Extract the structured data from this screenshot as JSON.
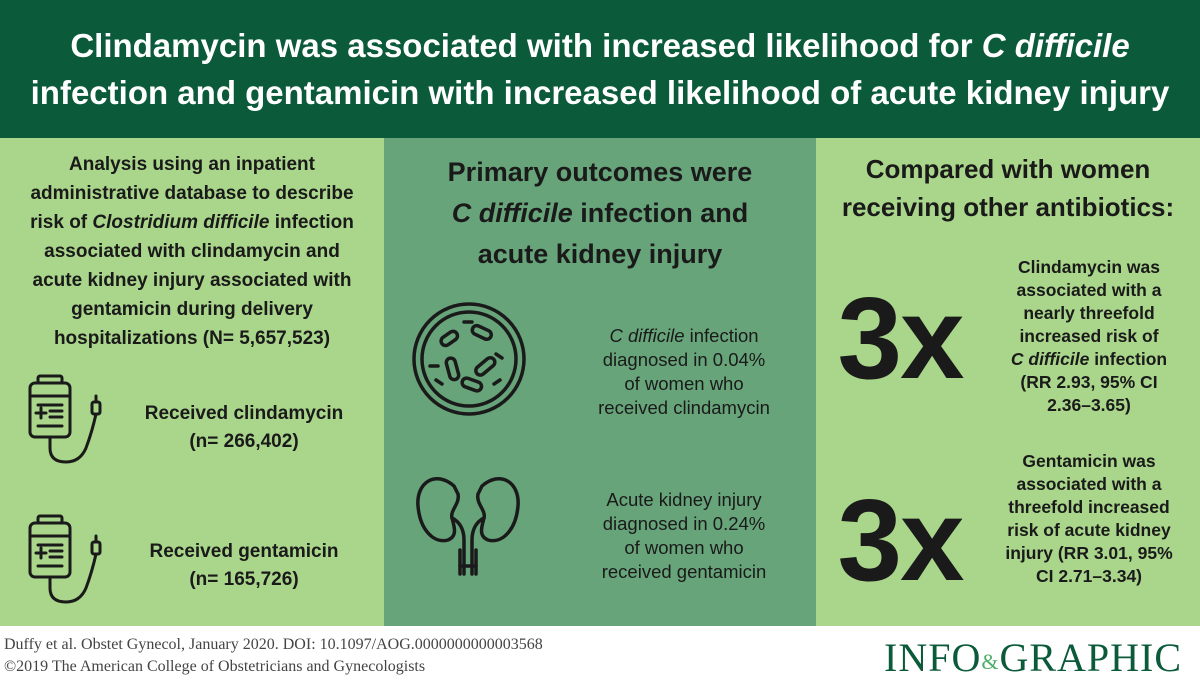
{
  "header": {
    "line1_pre": "Clindamycin was associated with increased likelihood for ",
    "line1_em": "C difficile",
    "line2": "infection and gentamicin with increased likelihood of acute kidney injury"
  },
  "left": {
    "intro_l1": "Analysis using an inpatient",
    "intro_l2": "administrative database to describe",
    "intro_l3_pre": "risk of ",
    "intro_l3_em": "Clostridium difficile",
    "intro_l3_post": " infection",
    "intro_l4": "associated with clindamycin and",
    "intro_l5": "acute kidney injury associated with",
    "intro_l6": "gentamicin during delivery",
    "intro_l7": "hospitalizations (N= 5,657,523)",
    "group1_label": "Received clindamycin",
    "group1_n": "(n= 266,402)",
    "group2_label": "Received gentamicin",
    "group2_n": "(n= 165,726)",
    "iv_icon": "iv-bag-icon"
  },
  "middle": {
    "title_l1": "Primary outcomes were",
    "title_l2_em": "C difficile",
    "title_l2_post": " infection and",
    "title_l3": "acute kidney injury",
    "out1_l1_em": "C difficile",
    "out1_l1_post": " infection",
    "out1_l2": "diagnosed in 0.04%",
    "out1_l3": "of women who",
    "out1_l4": "received clindamycin",
    "out2_l1": "Acute kidney injury",
    "out2_l2": "diagnosed in 0.24%",
    "out2_l3": "of women who",
    "out2_l4": "received gentamicin",
    "icons": [
      "bacteria-petri-dish-icon",
      "kidneys-icon"
    ]
  },
  "right": {
    "title_l1": "Compared with women",
    "title_l2": "receiving other antibiotics:",
    "big1": "3x",
    "big2": "3x",
    "s1_l1": "Clindamycin was",
    "s1_l2": "associated with a",
    "s1_l3": "nearly threefold",
    "s1_l4": "increased risk of",
    "s1_l5_em": "C difficile",
    "s1_l5_post": " infection",
    "s1_l6": "(RR 2.93, 95% CI",
    "s1_l7": "2.36–3.65)",
    "s2_l1": "Gentamicin was",
    "s2_l2": "associated with a",
    "s2_l3": "threefold increased",
    "s2_l4": "risk of acute kidney",
    "s2_l5": "injury (RR 3.01, 95%",
    "s2_l6": "CI 2.71–3.34)"
  },
  "footer": {
    "citation": "Duffy et al. Obstet Gynecol, January 2020. DOI: 10.1097/AOG.0000000000003568",
    "copyright": "©2019 The American College of Obstetricians and Gynecologists",
    "logo_pre": "INFO",
    "logo_amp": "&",
    "logo_post": "GRAPHIC"
  },
  "colors": {
    "header_bg": "#0b5a3a",
    "side_panels": "#a9d68a",
    "middle_panel": "#67a47a",
    "logo": "#0b5a3a"
  }
}
